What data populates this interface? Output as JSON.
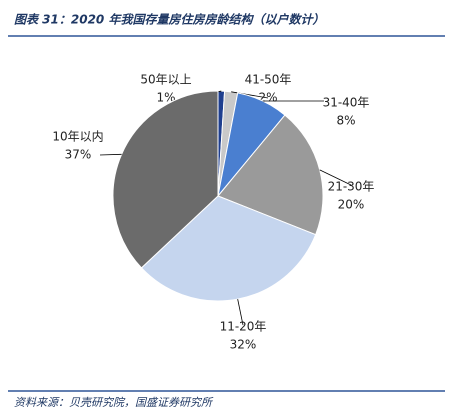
{
  "chart_data": {
    "type": "pie",
    "title": "图表 31：2020 年我国存量房住房房龄结构（以户数计）",
    "source": "资料来源：贝壳研究院，国盛证券研究所",
    "categories": [
      "50年以上",
      "41-50年",
      "31-40年",
      "21-30年",
      "11-20年",
      "10年以内"
    ],
    "values": [
      1,
      2,
      8,
      20,
      32,
      37
    ],
    "value_labels": [
      "1%",
      "2%",
      "8%",
      "20%",
      "32%",
      "37%"
    ],
    "colors": [
      "#1f3f8f",
      "#c9c9c9",
      "#4a7fd0",
      "#9a9a9a",
      "#c5d5ee",
      "#6b6b6b"
    ]
  }
}
